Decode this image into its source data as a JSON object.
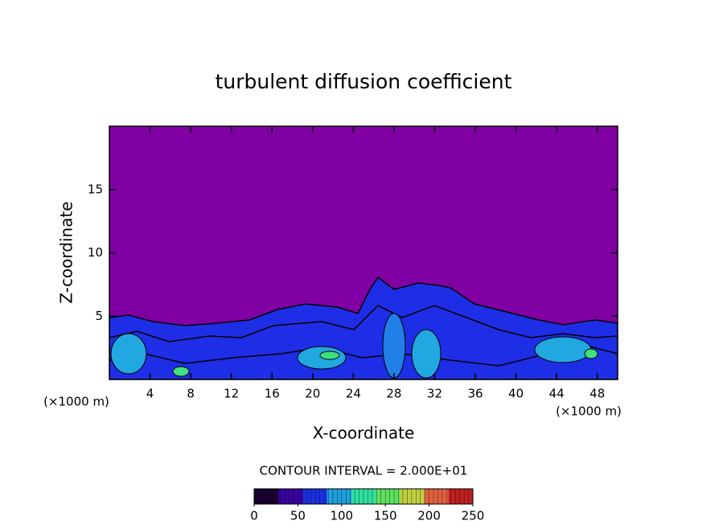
{
  "chart_data": {
    "type": "contour",
    "title": "turbulent diffusion coefficient",
    "x_label": "X-coordinate",
    "y_label": "Z-coordinate",
    "x_unit_labels": [
      "(×1000 m)",
      "(×1000 m)"
    ],
    "xlim": [
      0,
      50
    ],
    "xticks": [
      4,
      8,
      12,
      16,
      20,
      24,
      28,
      32,
      36,
      40,
      44,
      48
    ],
    "ylim": [
      0,
      20
    ],
    "yticks": [
      5,
      10,
      15
    ],
    "contour_interval": "CONTOUR INTERVAL = 2.000E+01",
    "colorbar": {
      "lim": [
        0,
        250
      ],
      "ticks": [
        0,
        50,
        100,
        150,
        200,
        250
      ],
      "colors": [
        "#1a0030",
        "#3a00a0",
        "#1a30e0",
        "#20a0e0",
        "#30e0a0",
        "#60e060",
        "#c0d040",
        "#e06040",
        "#c02020"
      ]
    }
  }
}
